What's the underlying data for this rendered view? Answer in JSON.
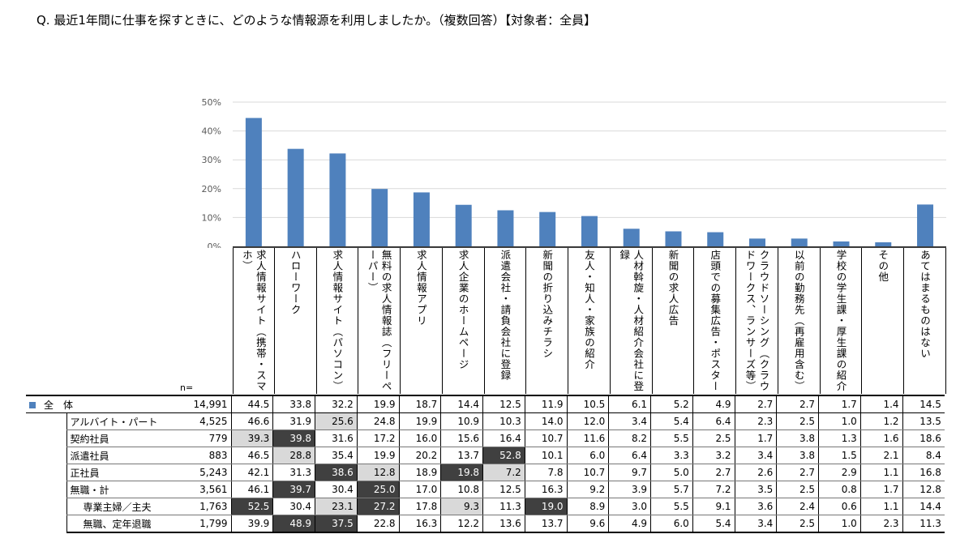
{
  "question": "Q.  最近1年間に仕事を探すときに、どのような情報源を利用しましたか。（複数回答）【対象者：全員】",
  "n_label": "n=",
  "colors": {
    "bar": "#4f81bd",
    "highlight_dark": "#404040",
    "highlight_light": "#d9d9d9"
  },
  "chart_data": {
    "type": "bar",
    "ylim": [
      0,
      50
    ],
    "yticks": [
      "0%",
      "10%",
      "20%",
      "30%",
      "40%",
      "50%"
    ],
    "grid": true,
    "categories": [
      "求人情報サイト（携帯・スマホ）",
      "ハローワーク",
      "求人情報サイト（パソコン）",
      "無料の求人情報誌（フリーペーパー）",
      "求人情報アプリ",
      "求人企業のホームページ",
      "派遣会社・請負会社に登録",
      "新聞の折り込みチラシ",
      "友人・知人・家族の紹介",
      "人材斡旋・人材紹介会社に登録",
      "新聞の求人広告",
      "店頭での募集広告・ポスター",
      "クラウドソーシング（クラウドワークス、ランサーズ等）",
      "以前の勤務先（再雇用含む）",
      "学校の学生課・厚生課の紹介",
      "その他",
      "あてはまるものはない"
    ],
    "values": [
      44.5,
      33.8,
      32.2,
      19.9,
      18.7,
      14.4,
      12.5,
      11.9,
      10.5,
      6.1,
      5.2,
      4.9,
      2.7,
      2.7,
      1.7,
      1.4,
      14.5
    ]
  },
  "table": {
    "rows": [
      {
        "label": "全　体",
        "n": "14,991",
        "values": [
          "44.5",
          "33.8",
          "32.2",
          "19.9",
          "18.7",
          "14.4",
          "12.5",
          "11.9",
          "10.5",
          "6.1",
          "5.2",
          "4.9",
          "2.7",
          "2.7",
          "1.7",
          "1.4",
          "14.5"
        ],
        "hl": []
      },
      {
        "label": "アルバイト・パート",
        "n": "4,525",
        "values": [
          "46.6",
          "31.9",
          "25.6",
          "24.8",
          "19.9",
          "10.9",
          "10.3",
          "14.0",
          "12.0",
          "3.4",
          "5.4",
          "6.4",
          "2.3",
          "2.5",
          "1.0",
          "1.2",
          "13.5"
        ],
        "hl": [
          [
            2,
            "light"
          ]
        ]
      },
      {
        "label": "契約社員",
        "n": "779",
        "values": [
          "39.3",
          "39.8",
          "31.6",
          "17.2",
          "16.0",
          "15.6",
          "16.4",
          "10.7",
          "11.6",
          "8.2",
          "5.5",
          "2.5",
          "1.7",
          "3.8",
          "1.3",
          "1.6",
          "18.6"
        ],
        "hl": [
          [
            0,
            "light"
          ],
          [
            1,
            "dark"
          ]
        ]
      },
      {
        "label": "派遣社員",
        "n": "883",
        "values": [
          "46.5",
          "28.8",
          "35.4",
          "19.9",
          "20.2",
          "13.7",
          "52.8",
          "10.1",
          "6.0",
          "6.4",
          "3.3",
          "3.2",
          "3.4",
          "3.8",
          "1.5",
          "2.1",
          "8.4"
        ],
        "hl": [
          [
            1,
            "light"
          ],
          [
            6,
            "dark"
          ]
        ]
      },
      {
        "label": "正社員",
        "n": "5,243",
        "values": [
          "42.1",
          "31.3",
          "38.6",
          "12.8",
          "18.9",
          "19.8",
          "7.2",
          "7.8",
          "10.7",
          "9.7",
          "5.0",
          "2.7",
          "2.6",
          "2.7",
          "2.9",
          "1.1",
          "16.8"
        ],
        "hl": [
          [
            2,
            "dark"
          ],
          [
            3,
            "light"
          ],
          [
            5,
            "dark"
          ],
          [
            6,
            "light"
          ]
        ]
      },
      {
        "label": "無職・計",
        "n": "3,561",
        "values": [
          "46.1",
          "39.7",
          "30.4",
          "25.0",
          "17.0",
          "10.8",
          "12.5",
          "16.3",
          "9.2",
          "3.9",
          "5.7",
          "7.2",
          "3.5",
          "2.5",
          "0.8",
          "1.7",
          "12.8"
        ],
        "hl": [
          [
            1,
            "dark"
          ],
          [
            3,
            "dark"
          ]
        ]
      },
      {
        "label": "専業主婦／主夫",
        "n": "1,763",
        "values": [
          "52.5",
          "30.4",
          "23.1",
          "27.2",
          "17.8",
          "9.3",
          "11.3",
          "19.0",
          "8.9",
          "3.0",
          "5.5",
          "9.1",
          "3.6",
          "2.4",
          "0.6",
          "1.1",
          "14.4"
        ],
        "hl": [
          [
            0,
            "dark"
          ],
          [
            2,
            "light"
          ],
          [
            3,
            "dark"
          ],
          [
            5,
            "light"
          ],
          [
            7,
            "dark"
          ]
        ]
      },
      {
        "label": "無職、定年退職",
        "n": "1,799",
        "values": [
          "39.9",
          "48.9",
          "37.5",
          "22.8",
          "16.3",
          "12.2",
          "13.6",
          "13.7",
          "9.6",
          "4.9",
          "6.0",
          "5.4",
          "3.4",
          "2.5",
          "1.0",
          "2.3",
          "11.3"
        ],
        "hl": [
          [
            1,
            "dark"
          ],
          [
            2,
            "dark"
          ]
        ]
      }
    ]
  }
}
